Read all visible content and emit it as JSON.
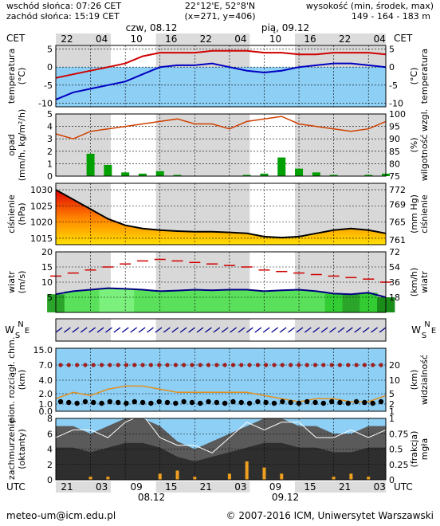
{
  "header": {
    "sunrise": "wschód słońca: 07:26 CET",
    "sunset": "zachód słońca: 15:19 CET",
    "coords": "22°12'E, 52°8'N",
    "grid": "(x=271,  y=406)",
    "height_label": "wysokość (min, środek, max)",
    "height_values": "149 - 164 - 183 m"
  },
  "timeline": {
    "tz_left": "CET",
    "tz_right": "CET",
    "day1": "czw, 08.12",
    "day2": "pią, 09.12",
    "top_hours": [
      "22",
      "04",
      "10",
      "16",
      "22",
      "04",
      "10",
      "16",
      "22",
      "04"
    ],
    "bottom_hours": [
      "21",
      "03",
      "09",
      "15",
      "21",
      "03",
      "09",
      "15",
      "21",
      "03"
    ],
    "bottom_tz_left": "UTC",
    "bottom_tz_right": "UTC",
    "bottom_day1": "08.12",
    "bottom_day2": "09.12"
  },
  "panels": {
    "temp": {
      "left": "temperatura",
      "left_unit": "(°C)",
      "right": "temperatura",
      "right_unit": "(°C)",
      "ticks": [
        "5",
        "0",
        "-5",
        "-10"
      ]
    },
    "precip": {
      "left": "opad",
      "left_unit": "(mm/h, kg/m²/h)",
      "right": "wilgotność wzgl.",
      "right_unit": "(%)",
      "ticks_left": [
        "5",
        "4",
        "3",
        "2",
        "1",
        "0"
      ],
      "ticks_right": [
        "100",
        "95",
        "90",
        "85",
        "80",
        "75"
      ]
    },
    "pressure": {
      "left": "ciśnienie",
      "left_unit": "(hPa)",
      "right": "ciśnienie",
      "right_unit": "(mm Hg)",
      "ticks_left": [
        "1030",
        "1025",
        "1020",
        "1015"
      ],
      "ticks_right": [
        "772",
        "769",
        "765",
        "761"
      ]
    },
    "wind": {
      "left": "wiatr",
      "left_unit": "(m/s)",
      "right": "wiatr",
      "right_unit": "(km/h)",
      "ticks_left": [
        "20",
        "15",
        "10",
        "5"
      ],
      "ticks_right": [
        "72",
        "54",
        "36",
        "18"
      ]
    },
    "dir": {
      "left_w": "W",
      "left_s": "S",
      "left_n": "N",
      "left_e": "E",
      "right_w": "W",
      "right_s": "S",
      "right_n": "N",
      "right_e": "E"
    },
    "cloud": {
      "left": "pion. rozciągł. chm.",
      "left_unit": "(km)",
      "right": "widzialność",
      "right_unit": "(km)",
      "ticks_left": [
        "15.0",
        "7.0",
        "4.0",
        "2.0",
        "1.0",
        "0.0"
      ],
      "ticks_right": [
        "20",
        "10",
        "5",
        "2",
        "1"
      ]
    },
    "cover": {
      "left": "zachmurzenie",
      "left_unit": "(oktanty)",
      "right": "mgła",
      "right_unit": "(frakcja)",
      "ticks_left": [
        "8",
        "6",
        "4",
        "2",
        "0"
      ],
      "ticks_right": [
        "1",
        "0.75",
        "0.5",
        "0.25",
        "0"
      ]
    }
  },
  "footer": {
    "email": "meteo-um@icm.edu.pl",
    "copyright": "© 2007-2016 ICM, Uniwersytet Warszawski"
  },
  "colors": {
    "temp_line": "#d00000",
    "dew_line": "#0000c0",
    "sky": "#8ecff5",
    "rh_line": "#d04000",
    "precip_bar": "#00a000",
    "wind_fill": "#33cc33",
    "gust": "#d00000",
    "night": "#dcdcdc",
    "day": "#ffffff"
  },
  "chart_data": [
    {
      "type": "line",
      "title": "temperatura",
      "x_hours_cet": [
        22,
        1,
        4,
        7,
        10,
        13,
        16,
        19,
        22,
        1,
        4,
        7,
        10,
        13,
        16,
        19,
        22,
        1,
        4,
        7
      ],
      "series": [
        {
          "name": "temperatura",
          "values": [
            -3,
            -2,
            -1,
            0,
            1,
            3,
            4,
            4,
            4,
            4.5,
            4.5,
            4.5,
            4,
            4,
            3.5,
            3.5,
            4,
            4,
            4,
            3.5
          ]
        },
        {
          "name": "punkt rosy",
          "values": [
            -9,
            -7,
            -6,
            -5,
            -4,
            -2,
            0,
            0.5,
            0.5,
            1,
            0,
            -1,
            -1.5,
            -1,
            0,
            0.5,
            1,
            1,
            0.5,
            0
          ]
        }
      ],
      "ylim": [
        -11,
        6
      ]
    },
    {
      "type": "bar",
      "title": "opad",
      "x_hours_cet": [
        22,
        1,
        4,
        7,
        10,
        13,
        16,
        19,
        22,
        1,
        4,
        7,
        10,
        13,
        16,
        19,
        22,
        1,
        4,
        7
      ],
      "series": [
        {
          "name": "opad",
          "values": [
            0,
            0,
            1.8,
            0.9,
            0.3,
            0.2,
            0.4,
            0.1,
            0,
            0,
            0,
            0.1,
            0.2,
            1.5,
            0.6,
            0.3,
            0.1,
            0,
            0.1,
            0.2
          ]
        },
        {
          "name": "wilgotność wzgl.",
          "values": [
            92,
            90,
            93,
            94,
            95,
            96,
            97,
            98,
            96,
            96,
            94,
            97,
            98,
            99,
            96,
            95,
            94,
            93,
            94,
            97
          ]
        }
      ],
      "ylim": [
        0,
        5
      ]
    },
    {
      "type": "area",
      "title": "ciśnienie",
      "x_hours_cet": [
        22,
        1,
        4,
        7,
        10,
        13,
        16,
        19,
        22,
        1,
        4,
        7,
        10,
        13,
        16,
        19,
        22,
        1,
        4,
        7
      ],
      "values": [
        1030,
        1027,
        1024,
        1021,
        1019,
        1018,
        1017.5,
        1017.2,
        1017,
        1017,
        1016.8,
        1016.5,
        1015.5,
        1015.2,
        1015.5,
        1016.5,
        1017.5,
        1018,
        1017.5,
        1016.5
      ],
      "ylim": [
        1013,
        1032
      ]
    },
    {
      "type": "area",
      "title": "wiatr",
      "x_hours_cet": [
        22,
        1,
        4,
        7,
        10,
        13,
        16,
        19,
        22,
        1,
        4,
        7,
        10,
        13,
        16,
        19,
        22,
        1,
        4,
        7
      ],
      "series": [
        {
          "name": "wiatr",
          "values": [
            6,
            7,
            7.5,
            8,
            7.8,
            7.5,
            7,
            7.2,
            7.5,
            7.3,
            7.5,
            7.5,
            7,
            7.3,
            7.5,
            7,
            6.2,
            6,
            6.5,
            5
          ]
        },
        {
          "name": "porywy",
          "values": [
            12,
            13,
            14,
            15,
            16,
            17,
            17.5,
            17,
            16.5,
            16,
            15.5,
            15,
            14,
            13.5,
            13,
            12.5,
            12,
            11.5,
            11,
            10
          ]
        }
      ],
      "ylim": [
        0,
        20
      ]
    },
    {
      "type": "scatter",
      "title": "widzialność",
      "x_hours_cet": [
        22,
        1,
        4,
        7,
        10,
        13,
        16,
        19,
        22,
        1,
        4,
        7,
        10,
        13,
        16,
        19,
        22,
        1,
        4,
        7
      ],
      "values": [
        4,
        6,
        5,
        7,
        8,
        8,
        7,
        6,
        6,
        6,
        6,
        6,
        5,
        4,
        3,
        4,
        4,
        3,
        3,
        5
      ],
      "ylim": [
        0,
        20
      ]
    },
    {
      "type": "area",
      "title": "zachmurzenie",
      "x_hours_cet": [
        22,
        1,
        4,
        7,
        10,
        13,
        16,
        19,
        22,
        1,
        4,
        7,
        10,
        13,
        16,
        19,
        22,
        1,
        4,
        7
      ],
      "series": [
        {
          "name": "zachmurzenie",
          "values": [
            7,
            7,
            6,
            7,
            8,
            8,
            7,
            5,
            4,
            5,
            6,
            7,
            8,
            8,
            7,
            7,
            6,
            6,
            7,
            7
          ]
        },
        {
          "name": "mgła",
          "values": [
            0,
            0,
            0.05,
            0.05,
            0,
            0,
            0.1,
            0.15,
            0.05,
            0,
            0.1,
            0.3,
            0.2,
            0.1,
            0,
            0,
            0.05,
            0.1,
            0.05,
            0
          ]
        }
      ],
      "ylim": [
        0,
        8
      ]
    }
  ]
}
